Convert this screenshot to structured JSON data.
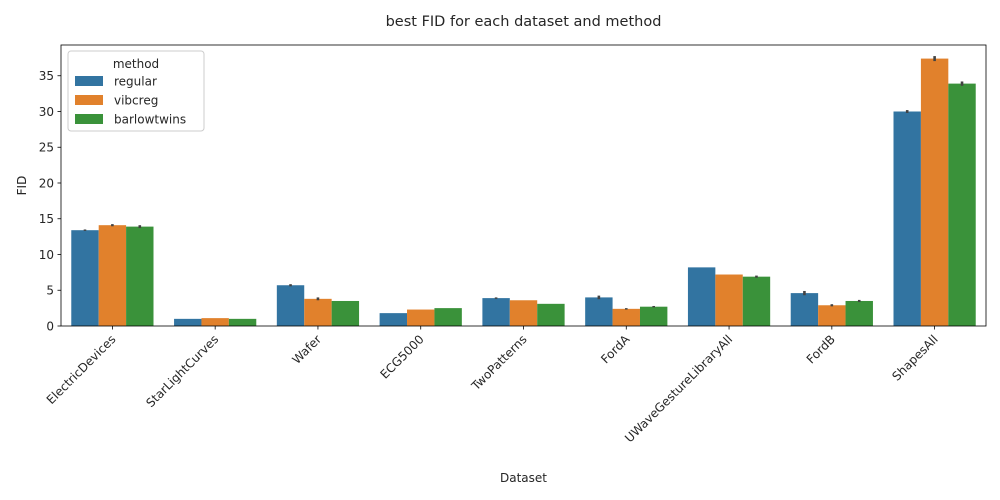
{
  "chart_data": {
    "type": "bar",
    "title": "best FID for each dataset and method",
    "xlabel": "Dataset",
    "ylabel": "FID",
    "ylim": [
      0,
      39.3
    ],
    "yticks": [
      0,
      5,
      10,
      15,
      20,
      25,
      30,
      35
    ],
    "grid": false,
    "legend": {
      "title": "method",
      "placement": "top-left"
    },
    "categories": [
      "ElectricDevices",
      "StarLightCurves",
      "Wafer",
      "ECG5000",
      "TwoPatterns",
      "FordA",
      "UWaveGestureLibraryAll",
      "FordB",
      "ShapesAll"
    ],
    "series": [
      {
        "name": "regular",
        "color": "#3274a1",
        "values": [
          13.4,
          1.0,
          5.7,
          1.8,
          3.9,
          4.0,
          8.2,
          4.6,
          30.0
        ],
        "error": [
          0.1,
          0.0,
          0.15,
          0.0,
          0.1,
          0.25,
          0.0,
          0.3,
          0.2
        ]
      },
      {
        "name": "vibcreg",
        "color": "#e1812c",
        "values": [
          14.1,
          1.1,
          3.8,
          2.3,
          3.6,
          2.4,
          7.2,
          2.9,
          37.4
        ],
        "error": [
          0.15,
          0.0,
          0.2,
          0.0,
          0.0,
          0.1,
          0.0,
          0.15,
          0.35
        ]
      },
      {
        "name": "barlowtwins",
        "color": "#3a923a",
        "values": [
          13.9,
          1.0,
          3.5,
          2.5,
          3.1,
          2.7,
          6.9,
          3.5,
          33.9
        ],
        "error": [
          0.2,
          0.0,
          0.0,
          0.0,
          0.0,
          0.1,
          0.15,
          0.15,
          0.3
        ]
      }
    ]
  }
}
